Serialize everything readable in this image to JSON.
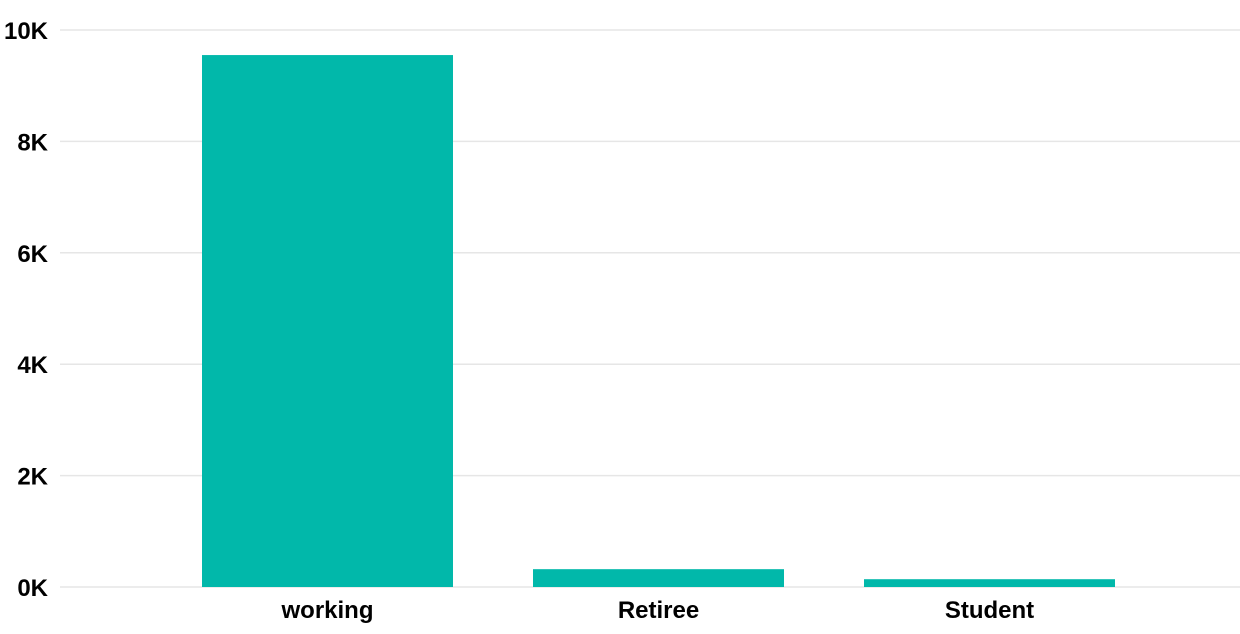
{
  "chart_data": {
    "type": "bar",
    "title": "",
    "xlabel": "",
    "ylabel": "",
    "categories": [
      "working",
      "Retiree",
      "Student"
    ],
    "values": [
      9550,
      320,
      140
    ],
    "ylim": [
      0,
      10000
    ],
    "yticks": [
      0,
      2000,
      4000,
      6000,
      8000,
      10000
    ],
    "ytick_labels": [
      "0K",
      "2K",
      "4K",
      "6K",
      "8K",
      "10K"
    ],
    "grid": true,
    "legend": "none",
    "bar_color": "#01b8aa"
  }
}
